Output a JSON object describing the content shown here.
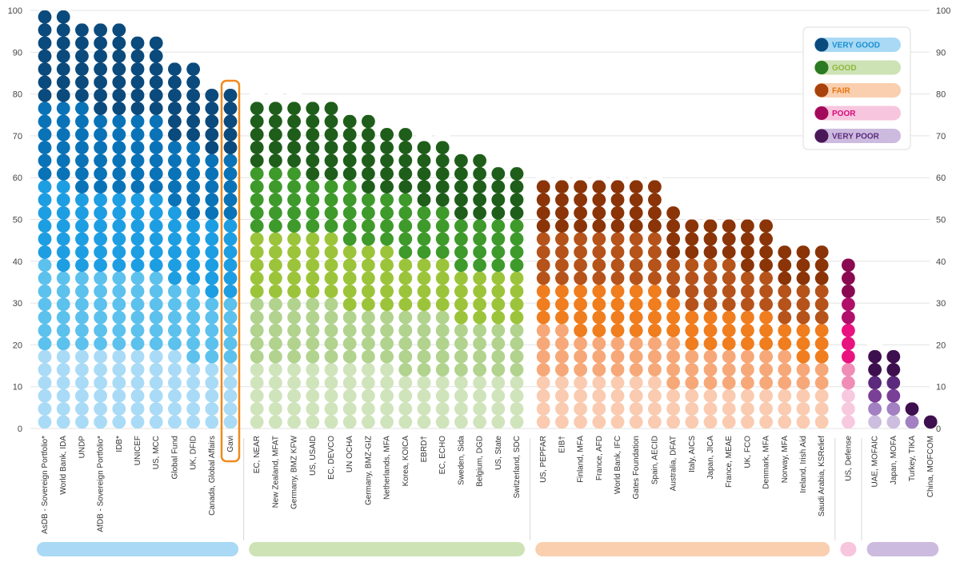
{
  "chart_data": {
    "type": "bar",
    "ylim": [
      0,
      100
    ],
    "yticks": [
      0,
      10,
      20,
      30,
      40,
      50,
      60,
      70,
      80,
      90,
      100
    ],
    "grid": true,
    "legend": {
      "placement": "top-right",
      "entries": [
        {
          "label": "VERY GOOD",
          "dot": "#0B4A7C",
          "pill": "#A9D9F5",
          "text": "#1A8FD0"
        },
        {
          "label": "GOOD",
          "dot": "#2A7A22",
          "pill": "#CDE3B6",
          "text": "#8DB83A"
        },
        {
          "label": "FAIR",
          "dot": "#A8410C",
          "pill": "#F9CFB0",
          "text": "#E8740F"
        },
        {
          "label": "POOR",
          "dot": "#A30A5B",
          "pill": "#F7C6DE",
          "text": "#D60A7A"
        },
        {
          "label": "VERY POOR",
          "dot": "#4A1856",
          "pill": "#CCBADF",
          "text": "#5B2A7D"
        }
      ]
    },
    "groups": [
      {
        "name": "very_good",
        "color": "#A9D9F5",
        "shades": [
          "#A9DBF7",
          "#5CC1ED",
          "#1E9EE2",
          "#0A73B8",
          "#0B4A7C"
        ],
        "categories": [
          "AsDB - Sovereign Portfolio*",
          "World Bank, IDA",
          "UNDP",
          "AfDB - Sovereign Portfolio*",
          "IDB*",
          "UNICEF",
          "US, MCC",
          "Global Fund",
          "UK, DFID",
          "Canada, Global Affairs",
          "Gavi"
        ],
        "values": [
          98,
          97,
          96,
          95,
          95,
          93,
          92,
          86,
          85,
          81,
          81
        ]
      },
      {
        "name": "good",
        "color": "#CDE3B6",
        "shades": [
          "#CFE4BB",
          "#B1D38E",
          "#9CC43A",
          "#3E9A2B",
          "#1E5E1A"
        ],
        "categories": [
          "EC, NEAR",
          "New Zealand, MFAT",
          "Germany, BMZ KFW",
          "US, USAID",
          "EC, DEVCO",
          "UN OCHA",
          "Germany, BMZ-GIZ",
          "Netherlands, MFA",
          "Korea, KOICA",
          "EBRD†",
          "EC, ECHO",
          "Sweden, Sida",
          "Belgium, DGD",
          "US, State",
          "Switzerland, SDC"
        ],
        "values": [
          78,
          77,
          77,
          76,
          76,
          74,
          72,
          71,
          70,
          68,
          68,
          64,
          63,
          62,
          61
        ]
      },
      {
        "name": "fair",
        "color": "#F9CFB0",
        "shades": [
          "#FACBB0",
          "#F7A878",
          "#F07D1E",
          "#B5531A",
          "#8A3408"
        ],
        "categories": [
          "US, PEPFAR",
          "EIB†",
          "Finland, MFA",
          "France, AFD",
          "World Bank, IFC",
          "Gates Foundation",
          "Spain, AECID",
          "Australia, DFAT",
          "Italy, AICS",
          "Japan, JICA",
          "France, MEAE",
          "UK, FCO",
          "Denmark, MFA",
          "Norway, MFA",
          "Ireland, Irish Aid",
          "Saudi Arabia, KSRelief"
        ],
        "values": [
          59,
          59,
          58,
          58,
          58,
          58,
          58,
          52,
          49,
          49,
          49,
          48,
          48,
          43,
          42,
          42
        ]
      },
      {
        "name": "poor",
        "color": "#F7C6DE",
        "shades": [
          "#F7C9DF",
          "#F08DB7",
          "#E8137F",
          "#B0106A",
          "#8A0A52"
        ],
        "categories": [
          "US, Defense"
        ],
        "values": [
          40
        ]
      },
      {
        "name": "very_poor",
        "color": "#CCBADF",
        "shades": [
          "#CDBEDF",
          "#A280C2",
          "#7A3F97",
          "#5B2A7D",
          "#3E0F4F"
        ],
        "categories": [
          "UAE, MOFAIC",
          "Japan, MOFA",
          "Turkey, TIKA",
          "China, MOFCOM"
        ],
        "values": [
          17,
          16,
          5,
          1
        ]
      }
    ],
    "highlight": "Gavi"
  }
}
